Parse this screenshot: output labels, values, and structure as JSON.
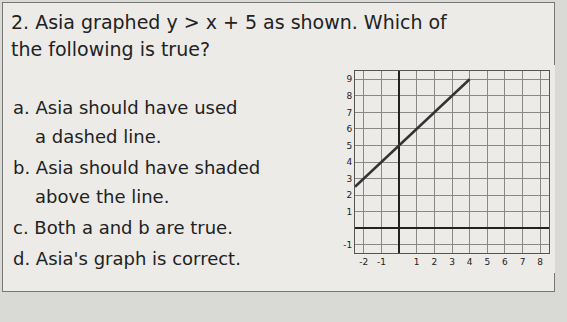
{
  "question": {
    "lines": [
      "2. Asia graphed y > x + 5 as shown. Which of",
      "the following is true?"
    ]
  },
  "options": [
    [
      "a. Asia should have used",
      "a dashed line."
    ],
    [
      "b. Asia should have shaded",
      "above the line."
    ],
    [
      "c. Both a and b are true."
    ],
    [
      "d. Asia's graph is correct."
    ]
  ],
  "chart_data": {
    "type": "line",
    "x": [
      -2.5,
      4
    ],
    "values": [
      2.5,
      9
    ],
    "color": "#333333",
    "line_style": "solid",
    "xlim": [
      -2.5,
      8.5
    ],
    "xticks": [
      -2,
      -1,
      1,
      2,
      3,
      4,
      5,
      6,
      7,
      8
    ],
    "ylim": [
      -1.5,
      9.5
    ],
    "yticks": [
      -1,
      1,
      2,
      3,
      4,
      5,
      6,
      7,
      8,
      9
    ],
    "grid": true
  }
}
